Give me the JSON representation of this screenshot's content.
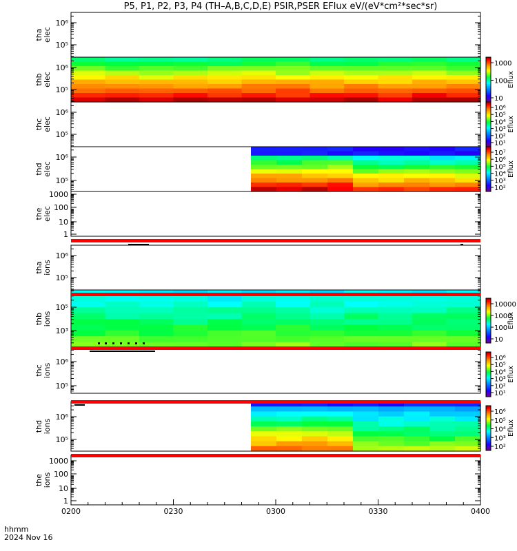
{
  "title": "P5, P1, P2, P3, P4 (TH–A,B,C,D,E) PSIR,PSER EFlux eV/(eV*cm²*sec*sr)",
  "footer": {
    "format_label": "hhmm",
    "date_label": "2024 Nov 16"
  },
  "chart_data": {
    "type": "heatmap",
    "x_axis": {
      "range": [
        "02:00",
        "04:00"
      ],
      "ticks": [
        "0200",
        "0230",
        "0300",
        "0330",
        "0400"
      ]
    },
    "colorbar_label": "Eflux",
    "panels": [
      {
        "id": "tha-elec",
        "line1": "tha",
        "line2": "elec",
        "yticks": [
          "10⁶",
          "10⁵"
        ],
        "spectrogram": "empty"
      },
      {
        "id": "thb-elec",
        "line1": "thb",
        "line2": "elec",
        "yticks": [
          "10⁶",
          "10⁵"
        ],
        "spectrogram": "full",
        "colorbar": {
          "ticks": [
            "1000",
            "100",
            "10"
          ]
        }
      },
      {
        "id": "thc-elec",
        "line1": "thc",
        "line2": "elec",
        "yticks": [
          "10⁶",
          "10⁵"
        ],
        "spectrogram": "empty",
        "colorbar": {
          "ticks": [
            "10⁶",
            "10⁵",
            "10⁴",
            "10³",
            "10²",
            "10¹"
          ]
        }
      },
      {
        "id": "thd-elec",
        "line1": "thd",
        "line2": "elec",
        "yticks": [
          "10⁶",
          "10⁵"
        ],
        "spectrogram": "from 02:55",
        "colorbar": {
          "ticks": [
            "10⁷",
            "10⁶",
            "10⁵",
            "10⁴",
            "10³",
            "10²"
          ]
        }
      },
      {
        "id": "the-elec",
        "line1": "the",
        "line2": "elec",
        "yticks": [
          "1000",
          "100",
          "10",
          "1"
        ],
        "spectrogram": "empty"
      },
      {
        "id": "tha-ions",
        "line1": "tha",
        "line2": "ions",
        "yticks": [
          "10⁶",
          "10⁵"
        ],
        "spectrogram": "empty"
      },
      {
        "id": "thb-ions",
        "line1": "thb",
        "line2": "ions",
        "yticks": [
          "10⁵",
          "10³"
        ],
        "spectrogram": "full",
        "colorbar": {
          "ticks": [
            "10000",
            "1000",
            "100",
            "10"
          ]
        }
      },
      {
        "id": "thc-ions",
        "line1": "thc",
        "line2": "ions",
        "yticks": [
          "10⁶",
          "10⁵"
        ],
        "spectrogram": "empty",
        "colorbar": {
          "ticks": [
            "10⁶",
            "10⁵",
            "10⁴",
            "10³",
            "10²",
            "10¹"
          ]
        }
      },
      {
        "id": "thd-ions",
        "line1": "thd",
        "line2": "ions",
        "yticks": [
          "10⁶",
          "10⁵"
        ],
        "spectrogram": "from 02:55",
        "colorbar": {
          "ticks": [
            "10⁶",
            "10⁵",
            "10⁴",
            "10³",
            "10²"
          ]
        }
      },
      {
        "id": "the-ions",
        "line1": "the",
        "line2": "ions",
        "yticks": [
          "1000",
          "100",
          "10",
          "1"
        ],
        "spectrogram": "empty"
      }
    ]
  }
}
